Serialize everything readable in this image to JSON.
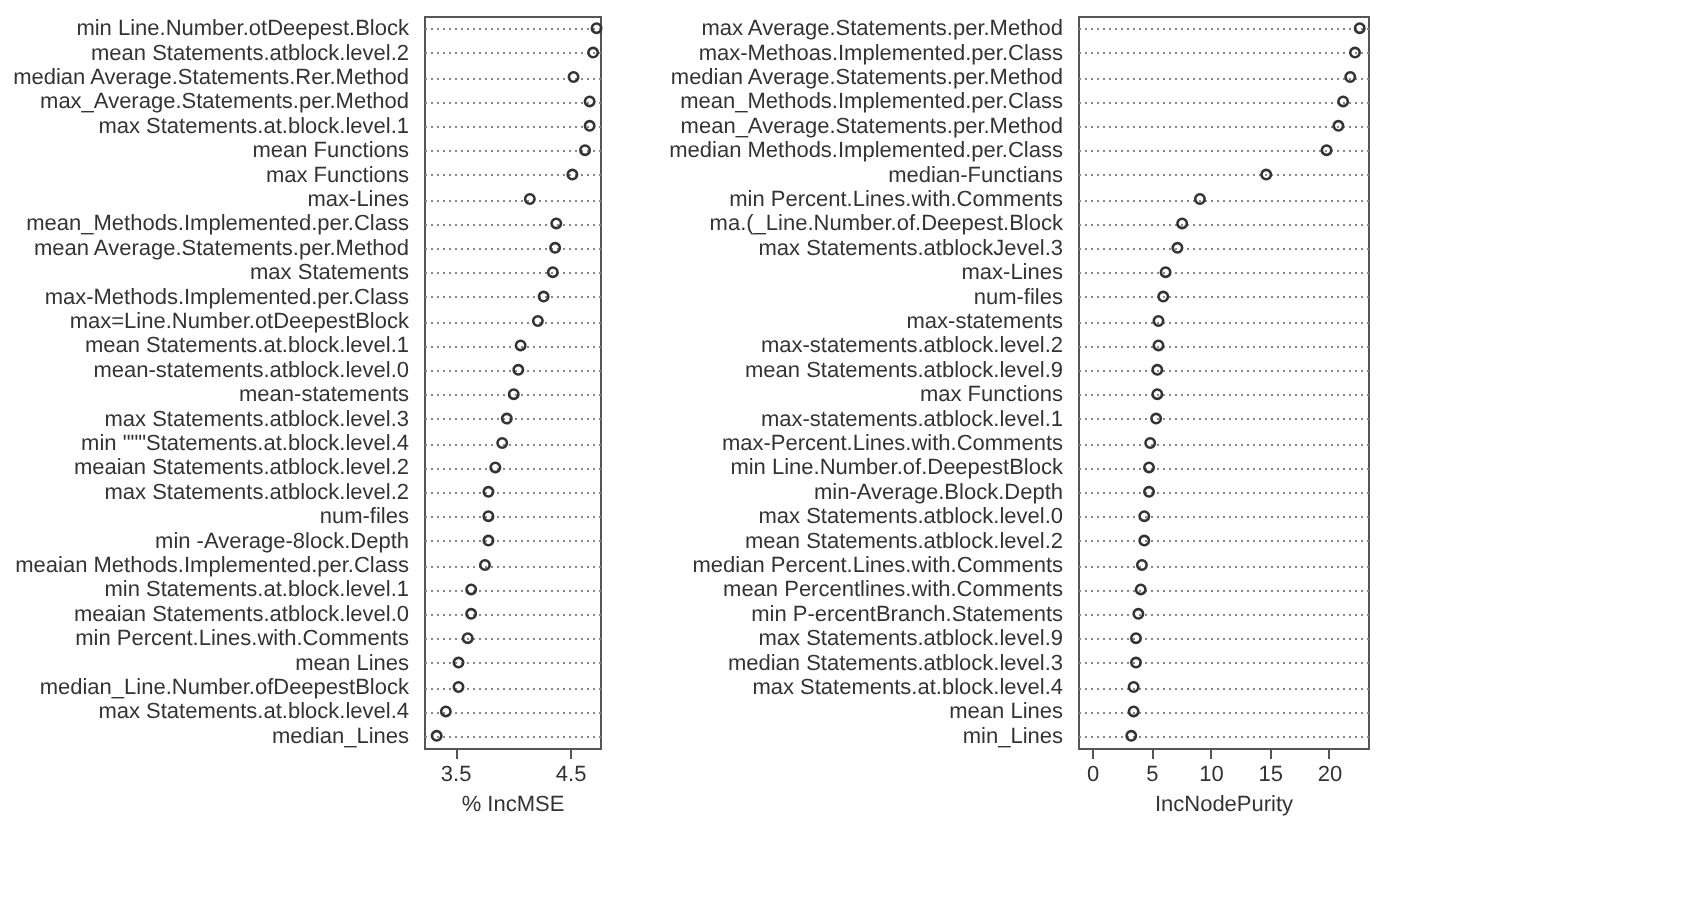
{
  "chart_data": [
    {
      "type": "scatter",
      "orientation": "horizontal",
      "xlabel": "% IncMSE",
      "xlim": [
        3.23,
        4.76
      ],
      "xticks": [
        3.5,
        4.5
      ],
      "grid": "y",
      "marker": "circle",
      "categories": [
        "min Line.Number.otDeepest.Block",
        "mean  Statements.atblock.level.2",
        "median Average.Statements.Rer.Method",
        "max_Average.Statements.per.Method",
        "max Statements.at.block.level.1",
        "mean Functions",
        "max Functions",
        "max-Lines",
        "mean_Methods.Implemented.per.Class",
        "mean Average.Statements.per.Method",
        "max Statements",
        "max-Methods.Implemented.per.Class",
        "max=Line.Number.otDeepestBlock",
        "mean Statements.at.block.level.1",
        "mean-statements.atblock.level.0",
        "mean-statements",
        "max  Statements.atblock.level.3",
        "min \"\"\"Statements.at.block.level.4",
        "meaian Statements.atblock.level.2",
        "max  Statements.atblock.level.2",
        "num-files",
        "min -Average-8lock.Depth",
        "meaian Methods.Implemented.per.Class",
        "min Statements.at.block.level.1",
        "meaian  Statements.atblock.level.0",
        "min Percent.Lines.with.Comments",
        "mean Lines",
        "median_Line.Number.ofDeepestBlock",
        "max Statements.at.block.level.4",
        "median_Lines"
      ],
      "series": [
        {
          "color": "#333333",
          "values": [
            4.73,
            4.7,
            4.53,
            4.67,
            4.67,
            4.63,
            4.52,
            4.15,
            4.38,
            4.37,
            4.35,
            4.27,
            4.22,
            4.07,
            4.05,
            4.01,
            3.95,
            3.91,
            3.85,
            3.79,
            3.79,
            3.79,
            3.76,
            3.64,
            3.64,
            3.61,
            3.53,
            3.53,
            3.42,
            3.34
          ]
        }
      ]
    },
    {
      "type": "scatter",
      "orientation": "horizontal",
      "xlabel": "IncNodePurity",
      "xlim": [
        -1.2,
        23.3
      ],
      "xticks": [
        0,
        5,
        10,
        15,
        20
      ],
      "grid": "y",
      "marker": "circle",
      "categories": [
        "max Average.Statements.per.Method",
        "max-Methoas.Implemented.per.Class",
        "median Average.Statements.per.Method",
        "mean_Methods.Implemented.per.Class",
        "mean_Average.Statements.per.Method",
        "median  Methods.Implemented.per.Class",
        "median-Functians",
        "min Percent.Lines.with.Comments",
        "ma.(_Line.Number.of.Deepest.Block",
        "max  Statements.atblockJevel.3",
        "max-Lines",
        "num-files",
        "max-statements",
        "max-statements.atblock.level.2",
        "mean  Statements.atblock.level.9",
        "max Functions",
        "max-statements.atblock.level.1",
        "max-Percent.Lines.with.Comments",
        "min Line.Number.of.DeepestBlock",
        "min-Average.Block.Depth",
        "max Statements.atblock.level.0",
        "mean  Statements.atblock.level.2",
        "median  Percent.Lines.with.Comments",
        "mean  Percentlines.with.Comments",
        "min P-ercentBranch.Statements",
        "max Statements.atblock.level.9",
        "median Statements.atblock.level.3",
        "max Statements.at.block.level.4",
        "mean Lines",
        "min_Lines"
      ],
      "series": [
        {
          "color": "#333333",
          "values": [
            22.6,
            22.2,
            21.8,
            21.2,
            20.8,
            19.8,
            14.7,
            9.1,
            7.6,
            7.2,
            6.2,
            6.0,
            5.6,
            5.6,
            5.5,
            5.5,
            5.4,
            4.9,
            4.8,
            4.8,
            4.4,
            4.4,
            4.2,
            4.1,
            3.9,
            3.7,
            3.7,
            3.5,
            3.5,
            3.3
          ]
        }
      ]
    }
  ]
}
